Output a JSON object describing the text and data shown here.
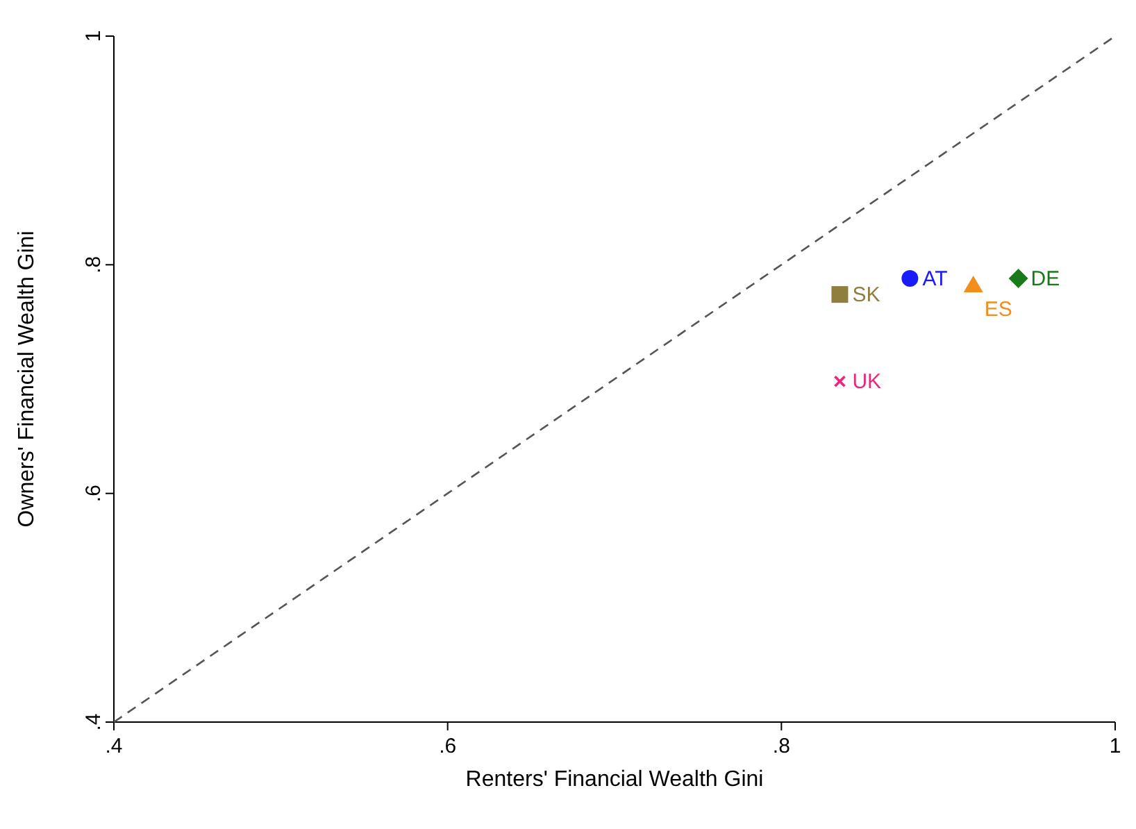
{
  "chart_data": {
    "type": "scatter",
    "xlabel": "Renters' Financial Wealth Gini",
    "ylabel": "Owners' Financial Wealth Gini",
    "xlim": [
      0.4,
      1
    ],
    "ylim": [
      0.4,
      1
    ],
    "xticks": [
      {
        "value": 0.4,
        "label": ".4"
      },
      {
        "value": 0.6,
        "label": ".6"
      },
      {
        "value": 0.8,
        "label": ".8"
      },
      1
    ],
    "yticks": [
      {
        "value": 0.4,
        "label": ".4"
      },
      {
        "value": 0.6,
        "label": ".6"
      },
      {
        "value": 0.8,
        "label": ".8"
      },
      1
    ],
    "grid": false,
    "series": [
      {
        "type": "line",
        "x": [
          0.4,
          1
        ],
        "values": [
          0.4,
          1
        ],
        "color": "#555555",
        "line_style": "dashed"
      },
      {
        "name": "SK",
        "x": [
          0.835
        ],
        "values": [
          0.774
        ],
        "color": "#8f7e3e",
        "marker": "square"
      },
      {
        "name": "AT",
        "x": [
          0.877
        ],
        "values": [
          0.788
        ],
        "color": "#1a1aff",
        "marker": "circle"
      },
      {
        "name": "ES",
        "x": [
          0.915
        ],
        "values": [
          0.782
        ],
        "color": "#f28e1c",
        "marker": "triangle"
      },
      {
        "name": "DE",
        "x": [
          0.942
        ],
        "values": [
          0.788
        ],
        "color": "#1a7a1a",
        "marker": "diamond"
      },
      {
        "name": "UK",
        "x": [
          0.835
        ],
        "values": [
          0.698
        ],
        "color": "#e8287a",
        "marker": "cross"
      }
    ]
  }
}
